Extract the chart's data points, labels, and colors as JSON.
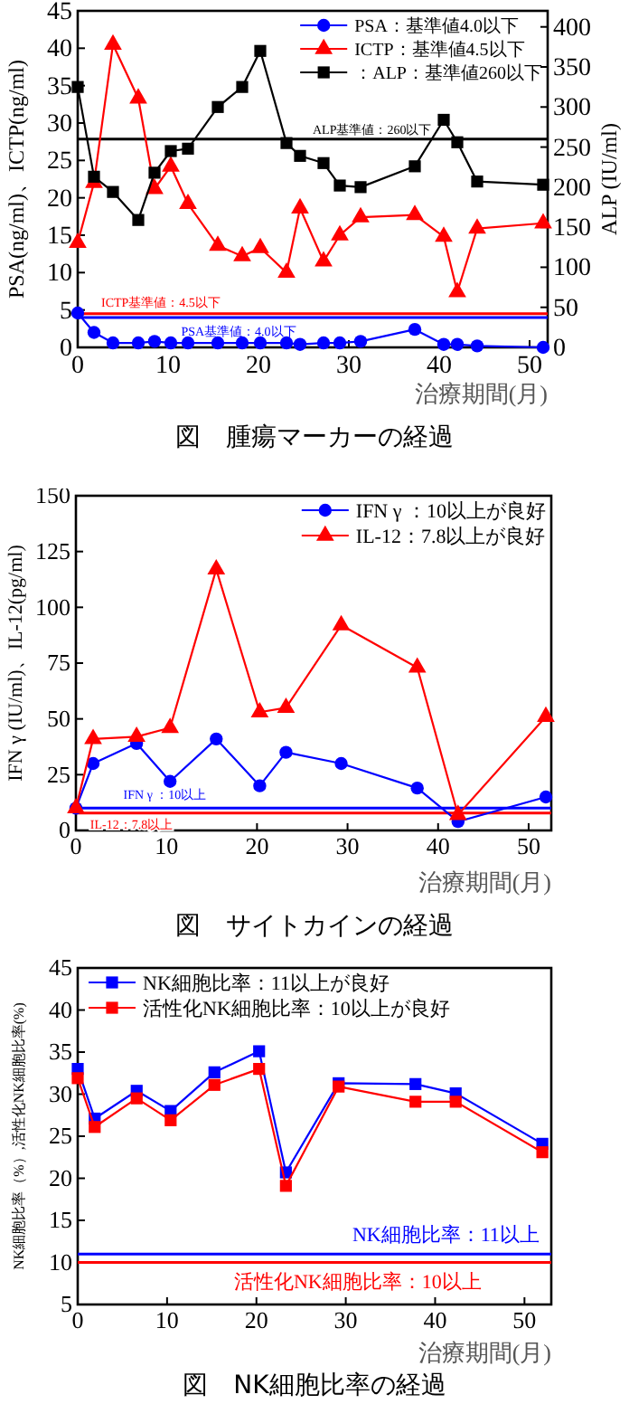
{
  "chart_data": [
    {
      "type": "line",
      "title": "図　腫瘍マーカーの経過",
      "xlabel": "治療期間(月)",
      "ylabel": "PSA(ng/ml)、ICTP(ng/ml)",
      "y2label": "ALP (IU/ml)",
      "xlim": [
        0,
        52
      ],
      "xticks": [
        0,
        10,
        20,
        30,
        40,
        50
      ],
      "ylim": [
        0,
        45
      ],
      "yticks": [
        0,
        5,
        10,
        15,
        20,
        25,
        30,
        35,
        40,
        45
      ],
      "y2lim": [
        0,
        420
      ],
      "y2ticks": [
        0,
        50,
        100,
        150,
        200,
        250,
        300,
        350,
        400
      ],
      "grid": false,
      "legend": "top right",
      "x": [
        0,
        1.8,
        3.9,
        6.7,
        8.5,
        10.3,
        12.2,
        15.5,
        18.2,
        20.2,
        23.1,
        24.6,
        27.2,
        29,
        31.3,
        37.3,
        40.5,
        42,
        44.2,
        51.5
      ],
      "series": [
        {
          "name": "PSA：基準値4.0以下",
          "color": "#0000ff",
          "marker": "circle",
          "values": [
            4.6,
            2,
            0.6,
            0.6,
            0.8,
            0.6,
            0.6,
            0.6,
            0.6,
            0.6,
            0.6,
            0.4,
            0.6,
            0.6,
            0.8,
            2.4,
            0.4,
            0.4,
            0.2,
            0
          ]
        },
        {
          "name": "ICTP：基準値4.5以下",
          "color": "#ff0000",
          "marker": "triangle",
          "values": [
            14,
            22,
            40.5,
            33.3,
            21.2,
            24.2,
            19.2,
            13.6,
            12.2,
            13.3,
            10,
            18.6,
            11.5,
            15,
            17.4,
            17.7,
            14.8,
            7.4,
            15.9,
            16.6
          ]
        },
        {
          "name": "：ALP：基準値260以下",
          "color": "#000000",
          "marker": "square",
          "axis": "y2",
          "values": [
            325,
            213,
            194,
            159,
            218,
            245,
            248,
            300,
            325,
            370,
            255,
            239,
            230,
            202,
            200,
            226,
            284,
            256,
            207,
            203
          ]
        }
      ],
      "ref_lines": [
        {
          "axis": "y",
          "value": 4.5,
          "label": "ICTP基準値：4.5以下",
          "color": "#ff0000"
        },
        {
          "axis": "y",
          "value": 4,
          "label": "PSA基準値：4.0以下",
          "color": "#0000ff"
        },
        {
          "axis": "y2",
          "value": 260,
          "label": "ALP基準値：260以下",
          "color": "#000000"
        }
      ]
    },
    {
      "type": "line",
      "title": "図　サイトカインの経過",
      "xlabel": "治療期間(月)",
      "ylabel": "IFN γ (IU/ml)、IL-12(pg/ml)",
      "xlim": [
        0,
        52.5
      ],
      "xticks": [
        0,
        10,
        20,
        30,
        40,
        50
      ],
      "ylim": [
        0,
        150
      ],
      "yticks": [
        0,
        25,
        50,
        75,
        100,
        125,
        150
      ],
      "grid": false,
      "legend": "top right",
      "x": [
        0,
        1.9,
        6.7,
        10.4,
        15.5,
        20.3,
        23.2,
        29.3,
        37.7,
        42.2,
        51.9
      ],
      "series": [
        {
          "name": "IFN γ ：10以上が良好",
          "color": "#0000ff",
          "marker": "circle",
          "values": [
            10,
            30,
            39,
            22,
            41,
            20,
            35,
            30,
            19,
            4,
            15
          ]
        },
        {
          "name": "IL-12：7.8以上が良好",
          "color": "#ff0000",
          "marker": "triangle",
          "values": [
            10,
            41,
            42,
            46,
            117,
            53,
            55,
            92,
            73,
            7,
            51
          ]
        }
      ],
      "ref_lines": [
        {
          "axis": "y",
          "value": 10,
          "label": "IFN γ ：10以上",
          "color": "#0000ff"
        },
        {
          "axis": "y",
          "value": 7.8,
          "label": "IL-12：7.8以上",
          "color": "#ff0000"
        }
      ]
    },
    {
      "type": "line",
      "title": "図　NK細胞比率の経過",
      "xlabel": "治療期間(月)",
      "ylabel": "NK細胞比率（%）,活性化NK細胞比率(%)",
      "xlim": [
        0,
        53
      ],
      "xticks": [
        0,
        10,
        20,
        30,
        40,
        50
      ],
      "ylim": [
        5,
        45
      ],
      "yticks": [
        5,
        10,
        15,
        20,
        25,
        30,
        35,
        40,
        45
      ],
      "grid": false,
      "legend": "top",
      "x": [
        0,
        1.9,
        6.6,
        10.4,
        15.3,
        20.3,
        23.3,
        29.2,
        37.8,
        42.3,
        52
      ],
      "series": [
        {
          "name": "NK細胞比率：11以上が良好",
          "color": "#0000ff",
          "marker": "square",
          "values": [
            33,
            27.1,
            30.4,
            28,
            32.6,
            35.1,
            20.7,
            31.3,
            31.2,
            30.1,
            24.1
          ]
        },
        {
          "name": "活性化NK細胞比率：10以上が良好",
          "color": "#ff0000",
          "marker": "square",
          "values": [
            31.9,
            26.1,
            29.5,
            26.9,
            31.1,
            33,
            19.1,
            30.9,
            29.1,
            29.1,
            23.1
          ]
        }
      ],
      "ref_lines": [
        {
          "axis": "y",
          "value": 11,
          "label": "NK細胞比率：11以上",
          "color": "#0000ff"
        },
        {
          "axis": "y",
          "value": 10,
          "label": "活性化NK細胞比率：10以上",
          "color": "#ff0000"
        }
      ]
    }
  ]
}
